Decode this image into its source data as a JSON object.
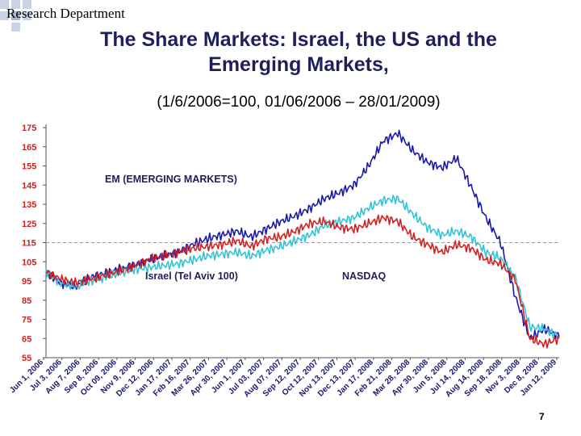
{
  "header": {
    "department": "Research Department",
    "title_line1": "The Share Markets: Israel, the US and the",
    "title_line2": "Emerging Markets,",
    "subtitle": "(1/6/2006=100, 01/06/2006 – 28/01/2009)"
  },
  "footer": {
    "page_number": "7"
  },
  "colors": {
    "accent": "#1f1f5c",
    "em": "#1a1aa8",
    "nasdaq": "#33c3d6",
    "israel": "#d42020",
    "tick_y": "#cc2222",
    "tick_x": "#1a1a6e"
  },
  "chart_data": {
    "type": "line",
    "title": "",
    "xlabel": "",
    "ylabel": "",
    "ylim": [
      55,
      175
    ],
    "yticks": [
      55,
      65,
      75,
      85,
      95,
      105,
      115,
      125,
      135,
      145,
      155,
      165,
      175
    ],
    "reference_line": 115,
    "grid": false,
    "legend": "none",
    "x_tick_labels": [
      "Jun 1, 2006",
      "Jul 3, 2006",
      "Aug 7, 2006",
      "Sep 8, 2006",
      "Oct 09, 2006",
      "Nov 9, 2006",
      "Dec 12, 2006",
      "Jan 17, 2007",
      "Feb 16, 2007",
      "Mar 26, 2007",
      "Apr 30, 2007",
      "Jun 1, 2007",
      "Jul 03, 2007",
      "Aug 07, 2007",
      "Sep 12, 2007",
      "Oct 12, 2007",
      "Nov 13, 2007",
      "Dec 13, 2007",
      "Jan 17, 2008",
      "Feb 21, 2008",
      "Mar 28, 2008",
      "Apr 30, 2008",
      "Jun 5, 2008",
      "Jul 14, 2008",
      "Aug 14, 2008",
      "Sep 18, 2008",
      "Nov 3, 2008",
      "Dec 8, 2008",
      "Jan 12, 2009"
    ],
    "annotations": [
      "EM (EMERGING MARKETS)",
      "Israel (Tel Aviv 100)",
      "NASDAQ"
    ],
    "series": [
      {
        "name": "EM (EMERGING MARKETS)",
        "color": "#1a1aa8",
        "values": [
          100,
          94,
          92,
          97,
          99,
          101,
          103,
          106,
          108,
          110,
          114,
          117,
          119,
          121,
          118,
          122,
          126,
          129,
          133,
          138,
          141,
          145,
          155,
          168,
          172,
          163,
          157,
          154,
          159,
          144,
          128,
          115,
          87,
          65,
          70,
          66
        ]
      },
      {
        "name": "NASDAQ",
        "color": "#33c3d6",
        "values": [
          100,
          94,
          92,
          95,
          97,
          99,
          101,
          102,
          103,
          104,
          106,
          108,
          109,
          110,
          108,
          111,
          113,
          116,
          119,
          124,
          126,
          128,
          133,
          137,
          138,
          130,
          123,
          119,
          121,
          118,
          110,
          107,
          97,
          71,
          70,
          66
        ]
      },
      {
        "name": "Israel (Tel Aviv 100)",
        "color": "#d42020",
        "values": [
          100,
          96,
          94,
          96,
          98,
          100,
          103,
          106,
          108,
          110,
          112,
          113,
          114,
          116,
          113,
          117,
          118,
          121,
          125,
          126,
          123,
          122,
          125,
          128,
          126,
          118,
          114,
          110,
          114,
          112,
          106,
          104,
          96,
          65,
          62,
          65
        ]
      }
    ]
  }
}
